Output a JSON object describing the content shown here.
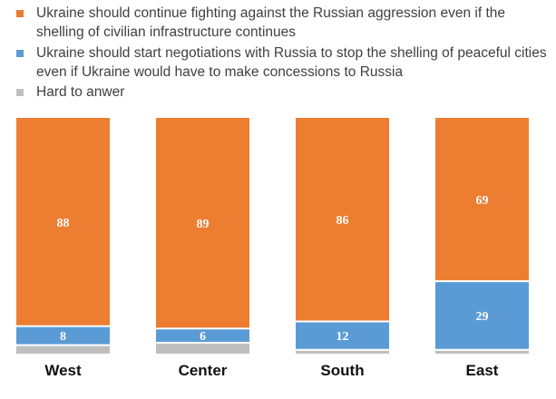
{
  "chart_data": {
    "type": "bar",
    "stacked": true,
    "normalized": true,
    "categories": [
      "West",
      "Center",
      "South",
      "East"
    ],
    "series": [
      {
        "name": "Ukraine should continue fighting against the Russian aggression even if the shelling of civilian infrastructure continues",
        "values": [
          88,
          89,
          86,
          69
        ],
        "labels": [
          "88",
          "89",
          "86",
          "69"
        ],
        "color": "#ED7D31"
      },
      {
        "name": "Ukraine should start negotiations with Russia to stop the shelling of peaceful cities even if Ukraine would have to make concessions to Russia",
        "values": [
          8,
          6,
          12,
          29
        ],
        "labels": [
          "8",
          "6",
          "12",
          "29"
        ],
        "color": "#5B9BD5"
      },
      {
        "name": "Hard to anwer",
        "values": [
          4,
          5,
          2,
          2
        ],
        "labels": [
          "",
          "",
          "",
          ""
        ],
        "color": "#BFBFBF"
      }
    ],
    "legend_position": "top-left",
    "grid": false,
    "ylim": [
      0,
      100
    ]
  },
  "legend": {
    "items": [
      {
        "text": "Ukraine should continue fighting against the Russian aggression even if the shelling of civilian infrastructure continues",
        "color": "#ED7D31"
      },
      {
        "text": "Ukraine should start negotiations with Russia to stop the shelling of peaceful cities even if Ukraine would have to make concessions to Russia",
        "color": "#5B9BD5"
      },
      {
        "text": "Hard to anwer",
        "color": "#BFBFBF"
      }
    ]
  }
}
